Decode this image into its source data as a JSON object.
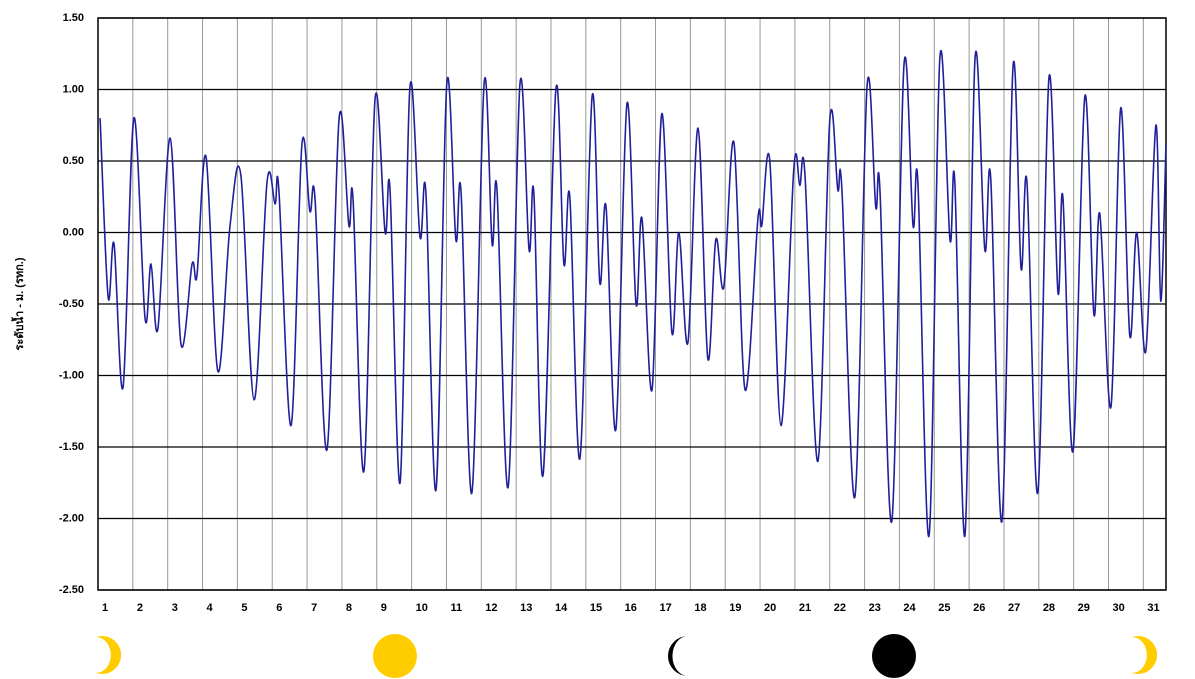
{
  "chart_data": {
    "type": "line",
    "y_label": "ระดับน้ำ - ม. (รทก.)",
    "xlim": [
      1,
      31.65
    ],
    "xticks": [
      1,
      2,
      3,
      4,
      5,
      6,
      7,
      8,
      9,
      10,
      11,
      12,
      13,
      14,
      15,
      16,
      17,
      18,
      19,
      20,
      21,
      22,
      23,
      24,
      25,
      26,
      27,
      28,
      29,
      30,
      31
    ],
    "ylim": [
      -2.5,
      1.5
    ],
    "yticks": [
      {
        "value": 1.5,
        "label": "1.50"
      },
      {
        "value": 1,
        "label": "1.00"
      },
      {
        "value": 0.5,
        "label": "0.50"
      },
      {
        "value": 0,
        "label": "0.00"
      },
      {
        "value": -0.5,
        "label": "-0.50"
      },
      {
        "value": -1,
        "label": "-1.00"
      },
      {
        "value": -1.5,
        "label": "-1.50"
      },
      {
        "value": -2,
        "label": "-2.00"
      },
      {
        "value": -2.5,
        "label": "-2.50"
      }
    ],
    "grid": true,
    "series": [
      {
        "color": "#20209a",
        "x": [
          1.06,
          1.29,
          1.46,
          1.72,
          2.03,
          2.35,
          2.52,
          2.72,
          3.07,
          3.38,
          3.7,
          3.84,
          4.1,
          4.44,
          4.79,
          5.1,
          5.48,
          5.85,
          6.08,
          6.19,
          6.54,
          6.85,
          7.08,
          7.23,
          7.57,
          7.92,
          8.2,
          8.32,
          8.63,
          8.95,
          9.24,
          9.38,
          9.67,
          9.95,
          10.24,
          10.41,
          10.7,
          11.01,
          11.27,
          11.42,
          11.73,
          12.08,
          12.31,
          12.45,
          12.77,
          13.11,
          13.37,
          13.51,
          13.77,
          14.14,
          14.37,
          14.54,
          14.83,
          15.18,
          15.4,
          15.58,
          15.86,
          16.18,
          16.44,
          16.61,
          16.9,
          17.18,
          17.47,
          17.67,
          17.93,
          18.22,
          18.5,
          18.73,
          18.96,
          19.25,
          19.57,
          19.94,
          20.05,
          20.28,
          20.6,
          20.97,
          21.14,
          21.29,
          21.66,
          22.0,
          22.23,
          22.35,
          22.72,
          23.07,
          23.32,
          23.44,
          23.78,
          24.13,
          24.39,
          24.53,
          24.85,
          25.16,
          25.45,
          25.59,
          25.88,
          26.17,
          26.45,
          26.62,
          26.94,
          27.26,
          27.49,
          27.66,
          27.97,
          28.29,
          28.55,
          28.69,
          28.98,
          29.32,
          29.58,
          29.75,
          30.07,
          30.35,
          30.61,
          30.81,
          31.07,
          31.36,
          31.5,
          31.65
        ],
        "values": [
          0.8,
          -0.45,
          -0.08,
          -1.08,
          0.8,
          -0.6,
          -0.22,
          -0.67,
          0.66,
          -0.78,
          -0.22,
          -0.3,
          0.53,
          -0.97,
          0.05,
          0.4,
          -1.17,
          0.35,
          0.2,
          0.3,
          -1.35,
          0.61,
          0.15,
          0.23,
          -1.52,
          0.8,
          0.05,
          0.23,
          -1.67,
          0.93,
          0.0,
          0.3,
          -1.75,
          1.01,
          -0.03,
          0.28,
          -1.8,
          1.04,
          -0.05,
          0.28,
          -1.82,
          1.04,
          -0.08,
          0.3,
          -1.78,
          1.04,
          -0.12,
          0.27,
          -1.7,
          1.0,
          -0.22,
          0.25,
          -1.58,
          0.95,
          -0.35,
          0.18,
          -1.38,
          0.9,
          -0.5,
          0.1,
          -1.1,
          0.83,
          -0.7,
          0.0,
          -0.77,
          0.73,
          -0.88,
          -0.05,
          -0.38,
          0.63,
          -1.1,
          0.1,
          0.05,
          0.5,
          -1.35,
          0.45,
          0.33,
          0.4,
          -1.6,
          0.78,
          0.3,
          0.3,
          -1.85,
          1.02,
          0.18,
          0.3,
          -2.02,
          1.17,
          0.05,
          0.35,
          -2.12,
          1.22,
          -0.05,
          0.35,
          -2.12,
          1.22,
          -0.12,
          0.38,
          -2.02,
          1.16,
          -0.25,
          0.35,
          -1.82,
          1.08,
          -0.42,
          0.25,
          -1.53,
          0.95,
          -0.57,
          0.13,
          -1.22,
          0.87,
          -0.72,
          0.0,
          -0.83,
          0.75,
          -0.48,
          0.62
        ]
      }
    ]
  }
}
